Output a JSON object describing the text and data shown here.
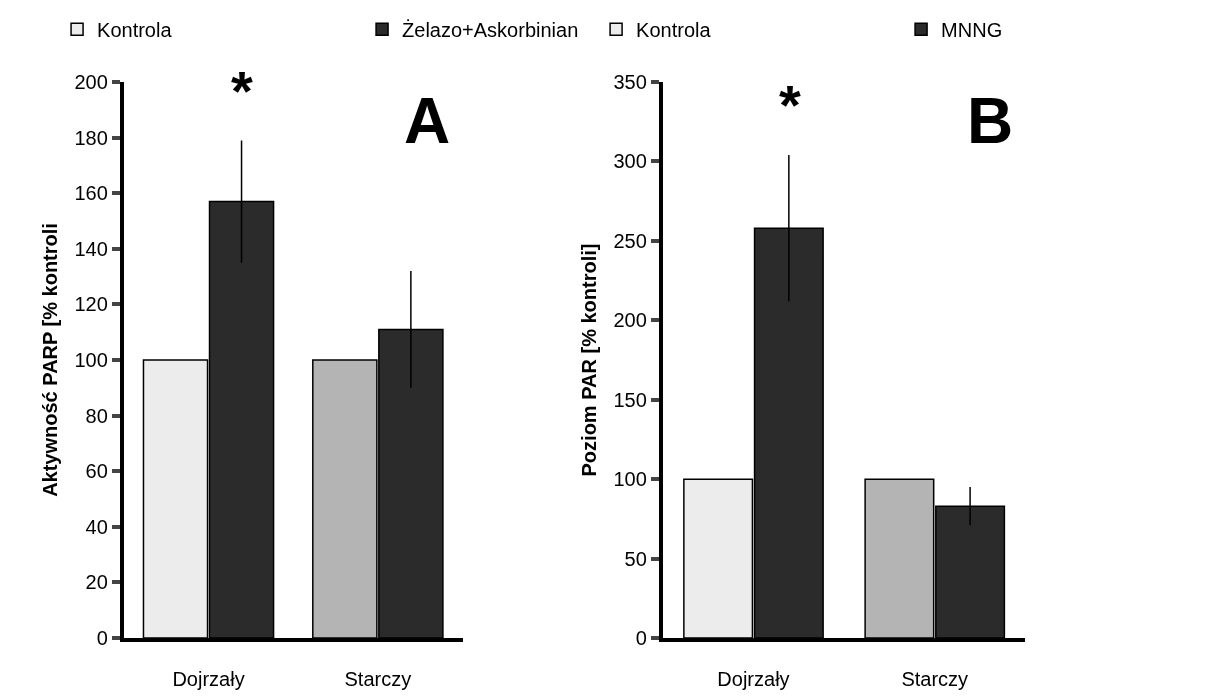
{
  "chart_data": [
    {
      "type": "bar",
      "categories": [
        "Dojrzały",
        "Starczy"
      ],
      "ylabel": "Aktywność PARP [% kontroli",
      "ylim": [
        0,
        200
      ],
      "yticks": [
        0,
        20,
        40,
        60,
        80,
        100,
        120,
        140,
        160,
        180,
        200
      ],
      "legend": "top",
      "grid": false,
      "series": [
        {
          "name": "Kontrola",
          "colors": [
            "#ececec",
            "#b4b4b4"
          ],
          "values": [
            100,
            100
          ]
        },
        {
          "name": "Żelazo+Askorbinian",
          "color": "#2b2b2b",
          "values": [
            157,
            111
          ],
          "errors": [
            22,
            21
          ]
        }
      ],
      "annotations": [
        "*",
        "A"
      ]
    },
    {
      "type": "bar",
      "categories": [
        "Dojrzały",
        "Starczy"
      ],
      "ylabel": "Poziom PAR [% kontroli]",
      "ylim": [
        0,
        350
      ],
      "yticks": [
        0,
        50,
        100,
        150,
        200,
        250,
        300,
        350
      ],
      "legend": "top",
      "grid": false,
      "series": [
        {
          "name": "Kontrola",
          "colors": [
            "#ececec",
            "#b4b4b4"
          ],
          "values": [
            100,
            100
          ]
        },
        {
          "name": "MNNG",
          "color": "#2b2b2b",
          "values": [
            258,
            83
          ],
          "errors": [
            46,
            12
          ]
        }
      ],
      "annotations": [
        "*",
        "B"
      ]
    }
  ]
}
